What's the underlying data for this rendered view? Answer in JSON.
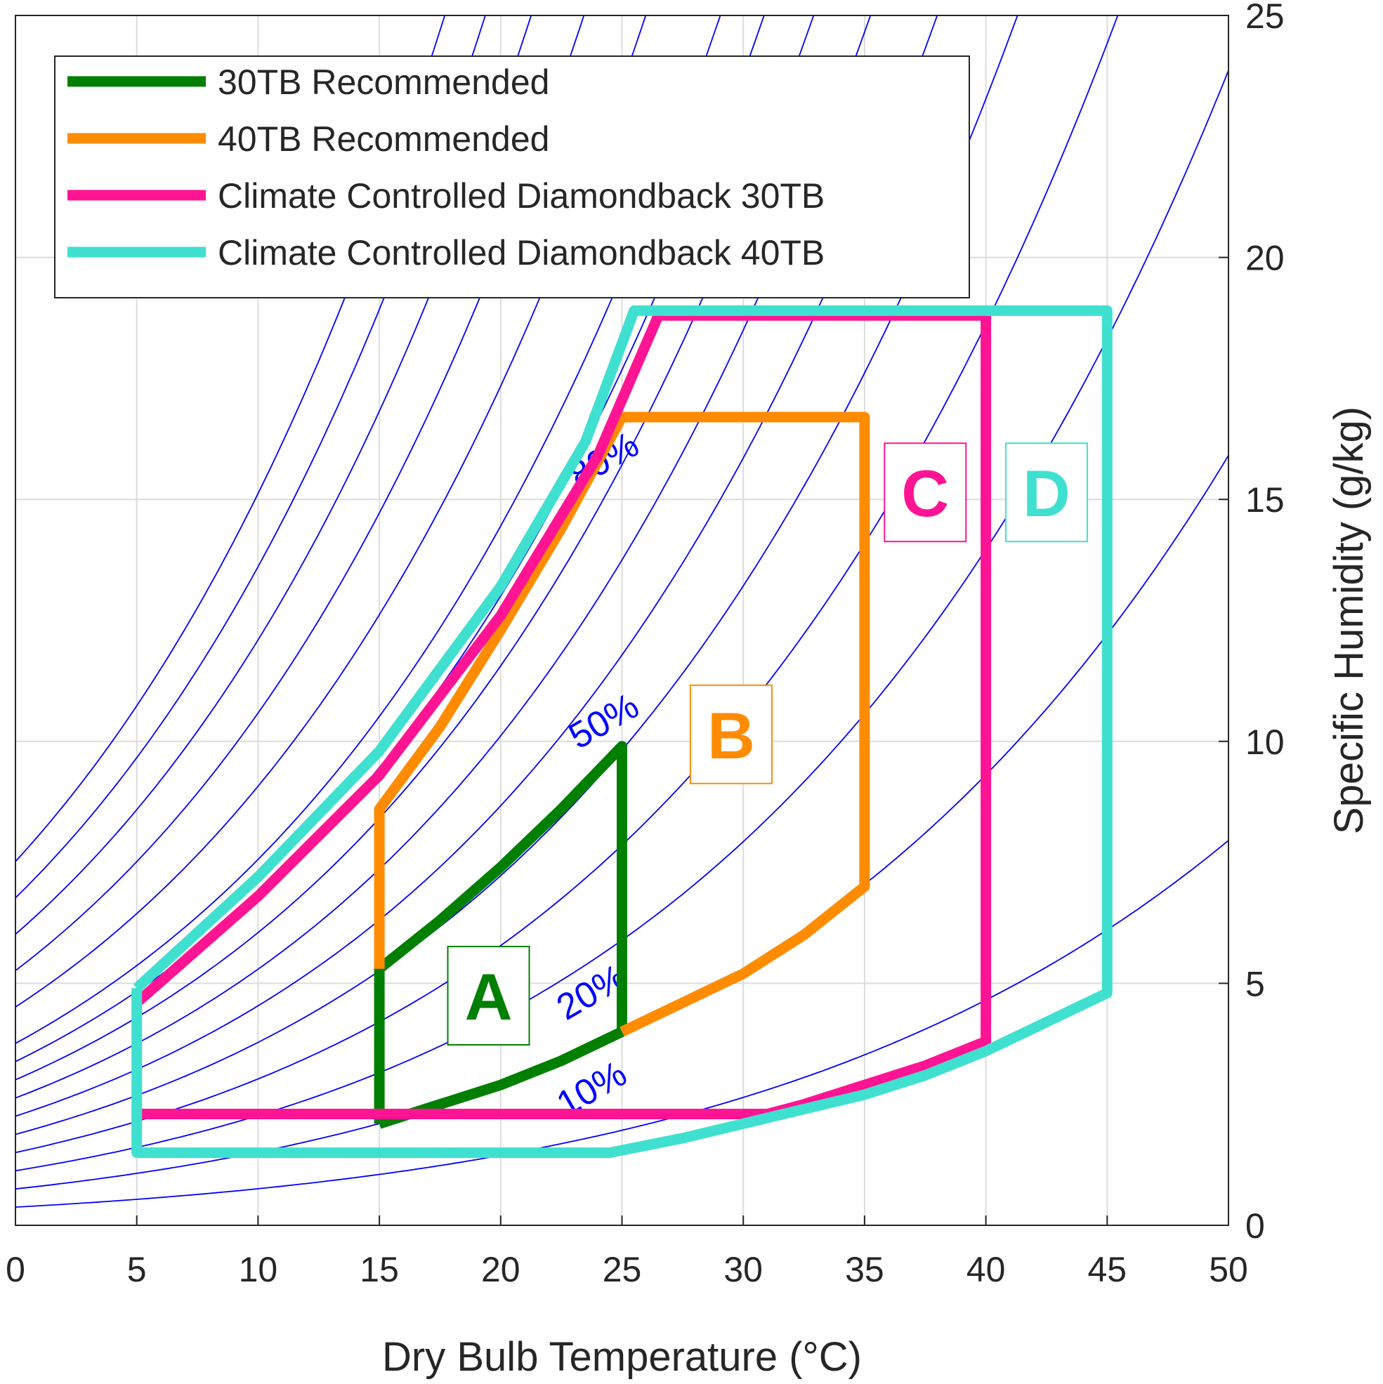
{
  "chart_data": {
    "type": "line",
    "title": "",
    "xlabel": "Dry Bulb Temperature (°C)",
    "ylabel": "Specific Humidity (g/kg)",
    "xlim": [
      0,
      50
    ],
    "ylim": [
      0,
      25
    ],
    "x_ticks": [
      "0",
      "5",
      "10",
      "15",
      "20",
      "25",
      "30",
      "35",
      "40",
      "45",
      "50"
    ],
    "y_ticks": [
      "0",
      "5",
      "10",
      "15",
      "20",
      "25"
    ],
    "y_axis_side": "right",
    "grid": true,
    "legend_position": "top-left",
    "rh_curves": {
      "color": "#0000ff",
      "rh_percent": [
        10,
        20,
        30,
        40,
        50,
        60,
        70,
        80,
        90,
        100,
        120,
        140,
        160,
        180,
        200
      ],
      "labels": [
        {
          "text": "10%",
          "x": 24,
          "y": 2.6
        },
        {
          "text": "20%",
          "x": 24,
          "y": 4.6
        },
        {
          "text": "50%",
          "x": 24.5,
          "y": 10.2
        },
        {
          "text": "80%",
          "x": 24.5,
          "y": 15.6
        }
      ]
    },
    "series": [
      {
        "name": "30TB Recommended",
        "color": "#007f00",
        "points": [
          [
            15,
            2.1
          ],
          [
            17.5,
            2.5
          ],
          [
            20,
            2.9
          ],
          [
            22.5,
            3.4
          ],
          [
            25,
            4.0
          ],
          [
            25,
            9.9
          ],
          [
            22.5,
            8.6
          ],
          [
            20,
            7.4
          ],
          [
            17.5,
            6.3
          ],
          [
            15,
            5.3
          ],
          [
            15,
            2.1
          ]
        ]
      },
      {
        "name": "40TB Recommended",
        "color": "#ff8c00",
        "points": [
          [
            15,
            5.3
          ],
          [
            15,
            8.6
          ],
          [
            17.5,
            10.3
          ],
          [
            20,
            12.3
          ],
          [
            22.5,
            14.4
          ],
          [
            25,
            16.7
          ],
          [
            35,
            16.7
          ],
          [
            35,
            7.0
          ],
          [
            32.5,
            6.0
          ],
          [
            30,
            5.2
          ],
          [
            27.5,
            4.6
          ],
          [
            25,
            4.0
          ]
        ]
      },
      {
        "name": "Climate Controlled Diamondback 30TB",
        "color": "#ff1493",
        "points": [
          [
            5,
            4.6
          ],
          [
            10,
            6.8
          ],
          [
            15,
            9.3
          ],
          [
            20,
            12.6
          ],
          [
            24,
            15.9
          ],
          [
            26.5,
            18.8
          ],
          [
            40,
            18.8
          ],
          [
            40,
            3.8
          ],
          [
            37.5,
            3.3
          ],
          [
            35,
            2.9
          ],
          [
            32.5,
            2.5
          ],
          [
            31,
            2.3
          ],
          [
            5,
            2.3
          ]
        ]
      },
      {
        "name": "Climate Controlled Diamondback 40TB",
        "color": "#40e0d0",
        "points": [
          [
            5,
            4.9
          ],
          [
            10,
            7.2
          ],
          [
            15,
            9.8
          ],
          [
            20,
            13.2
          ],
          [
            23.5,
            16.2
          ],
          [
            25.5,
            18.9
          ],
          [
            45,
            18.9
          ],
          [
            45,
            4.8
          ],
          [
            42.5,
            4.2
          ],
          [
            40,
            3.6
          ],
          [
            37.5,
            3.1
          ],
          [
            35,
            2.7
          ],
          [
            32.5,
            2.4
          ],
          [
            30,
            2.1
          ],
          [
            27.5,
            1.8
          ],
          [
            24.5,
            1.5
          ],
          [
            5,
            1.5
          ],
          [
            5,
            4.9
          ]
        ]
      }
    ],
    "zone_labels": [
      {
        "text": "A",
        "x": 19.5,
        "y": 4.6,
        "color": "#007f00"
      },
      {
        "text": "B",
        "x": 29.5,
        "y": 10.0,
        "color": "#ff8c00"
      },
      {
        "text": "C",
        "x": 37.5,
        "y": 15.0,
        "color": "#ff1493"
      },
      {
        "text": "D",
        "x": 42.5,
        "y": 15.0,
        "color": "#40e0d0"
      }
    ]
  }
}
